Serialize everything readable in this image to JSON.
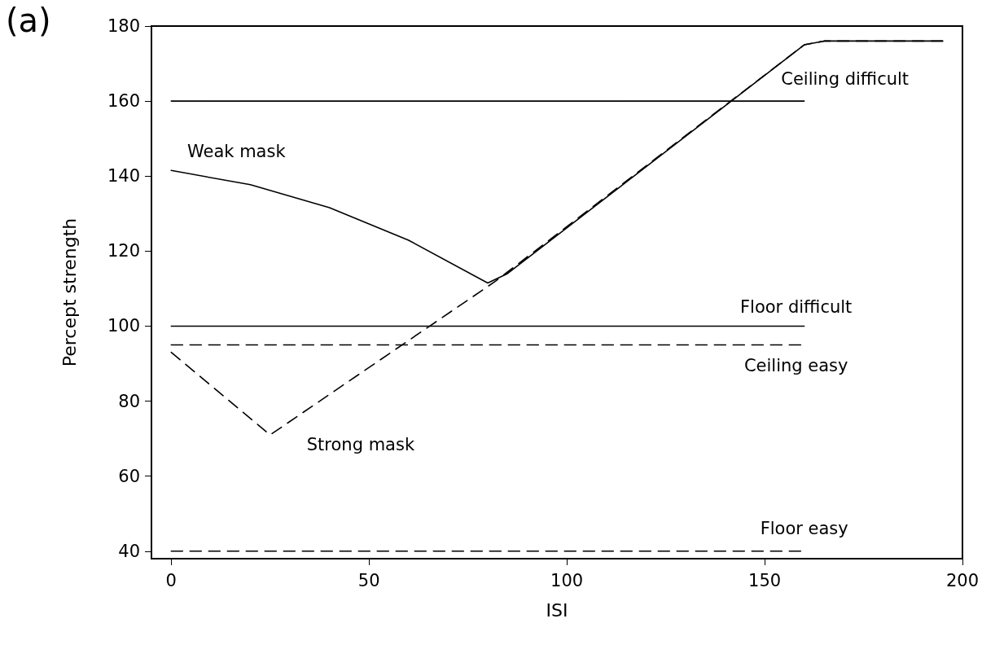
{
  "chart_data": {
    "type": "line",
    "title": "(a)",
    "xlabel": "ISI",
    "ylabel": "Percept strength",
    "xlim": [
      -5,
      200
    ],
    "xticks": [
      0,
      50,
      100,
      150,
      200
    ],
    "ylim": [
      38,
      180
    ],
    "yticks": [
      40,
      60,
      80,
      100,
      120,
      140,
      160,
      180
    ],
    "grid": false,
    "legend": false,
    "marker": "none",
    "series": [
      {
        "name": "Weak mask",
        "color": "#000000",
        "line_style": "solid",
        "x": [
          0,
          20,
          40,
          60,
          80,
          85,
          160,
          165,
          195
        ],
        "values": [
          141.5,
          137.7,
          131.6,
          122.9,
          111.5,
          114,
          175,
          176,
          176
        ]
      },
      {
        "name": "Strong mask",
        "color": "#000000",
        "line_style": "dashed",
        "x": [
          0,
          25,
          82,
          160,
          165,
          195
        ],
        "values": [
          93,
          71,
          112,
          175,
          176,
          176
        ]
      },
      {
        "name": "Ceiling difficult",
        "color": "#000000",
        "line_style": "solid",
        "x": [
          0,
          160
        ],
        "values": [
          160,
          160
        ]
      },
      {
        "name": "Floor difficult",
        "color": "#000000",
        "line_style": "solid",
        "x": [
          0,
          160
        ],
        "values": [
          100,
          100
        ]
      },
      {
        "name": "Ceiling easy",
        "color": "#000000",
        "line_style": "dashed",
        "x": [
          0,
          160
        ],
        "values": [
          95,
          95
        ]
      },
      {
        "name": "Floor easy",
        "color": "#000000",
        "line_style": "dashed",
        "x": [
          0,
          160
        ],
        "values": [
          40,
          40
        ]
      }
    ]
  }
}
